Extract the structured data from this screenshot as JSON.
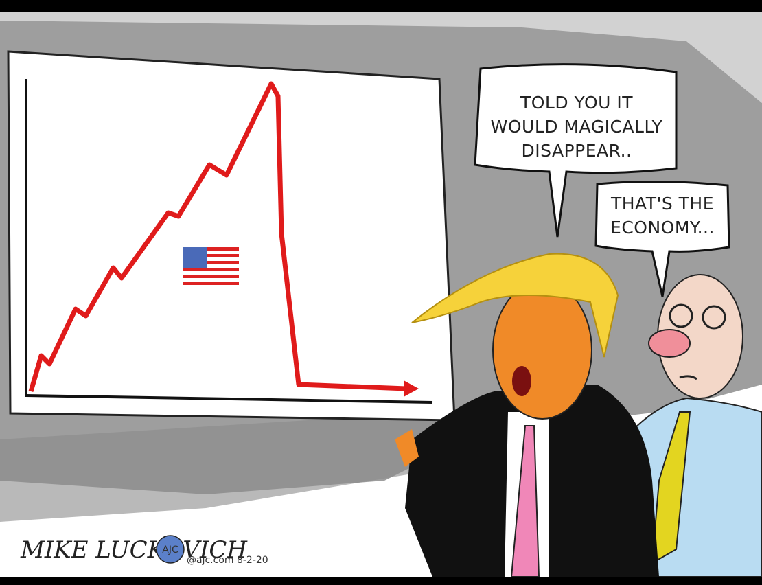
{
  "bubbles": [
    {
      "lines": [
        "TOLD YOU IT",
        "WOULD MAGICALLY",
        "DISAPPEAR.."
      ]
    },
    {
      "lines": [
        "THAT'S THE",
        "ECONOMY..."
      ]
    }
  ],
  "signature": {
    "artist": "MIKE LUCKOVICH",
    "logo": "AJC",
    "credit": "@ajc.com 8-2-20"
  }
}
